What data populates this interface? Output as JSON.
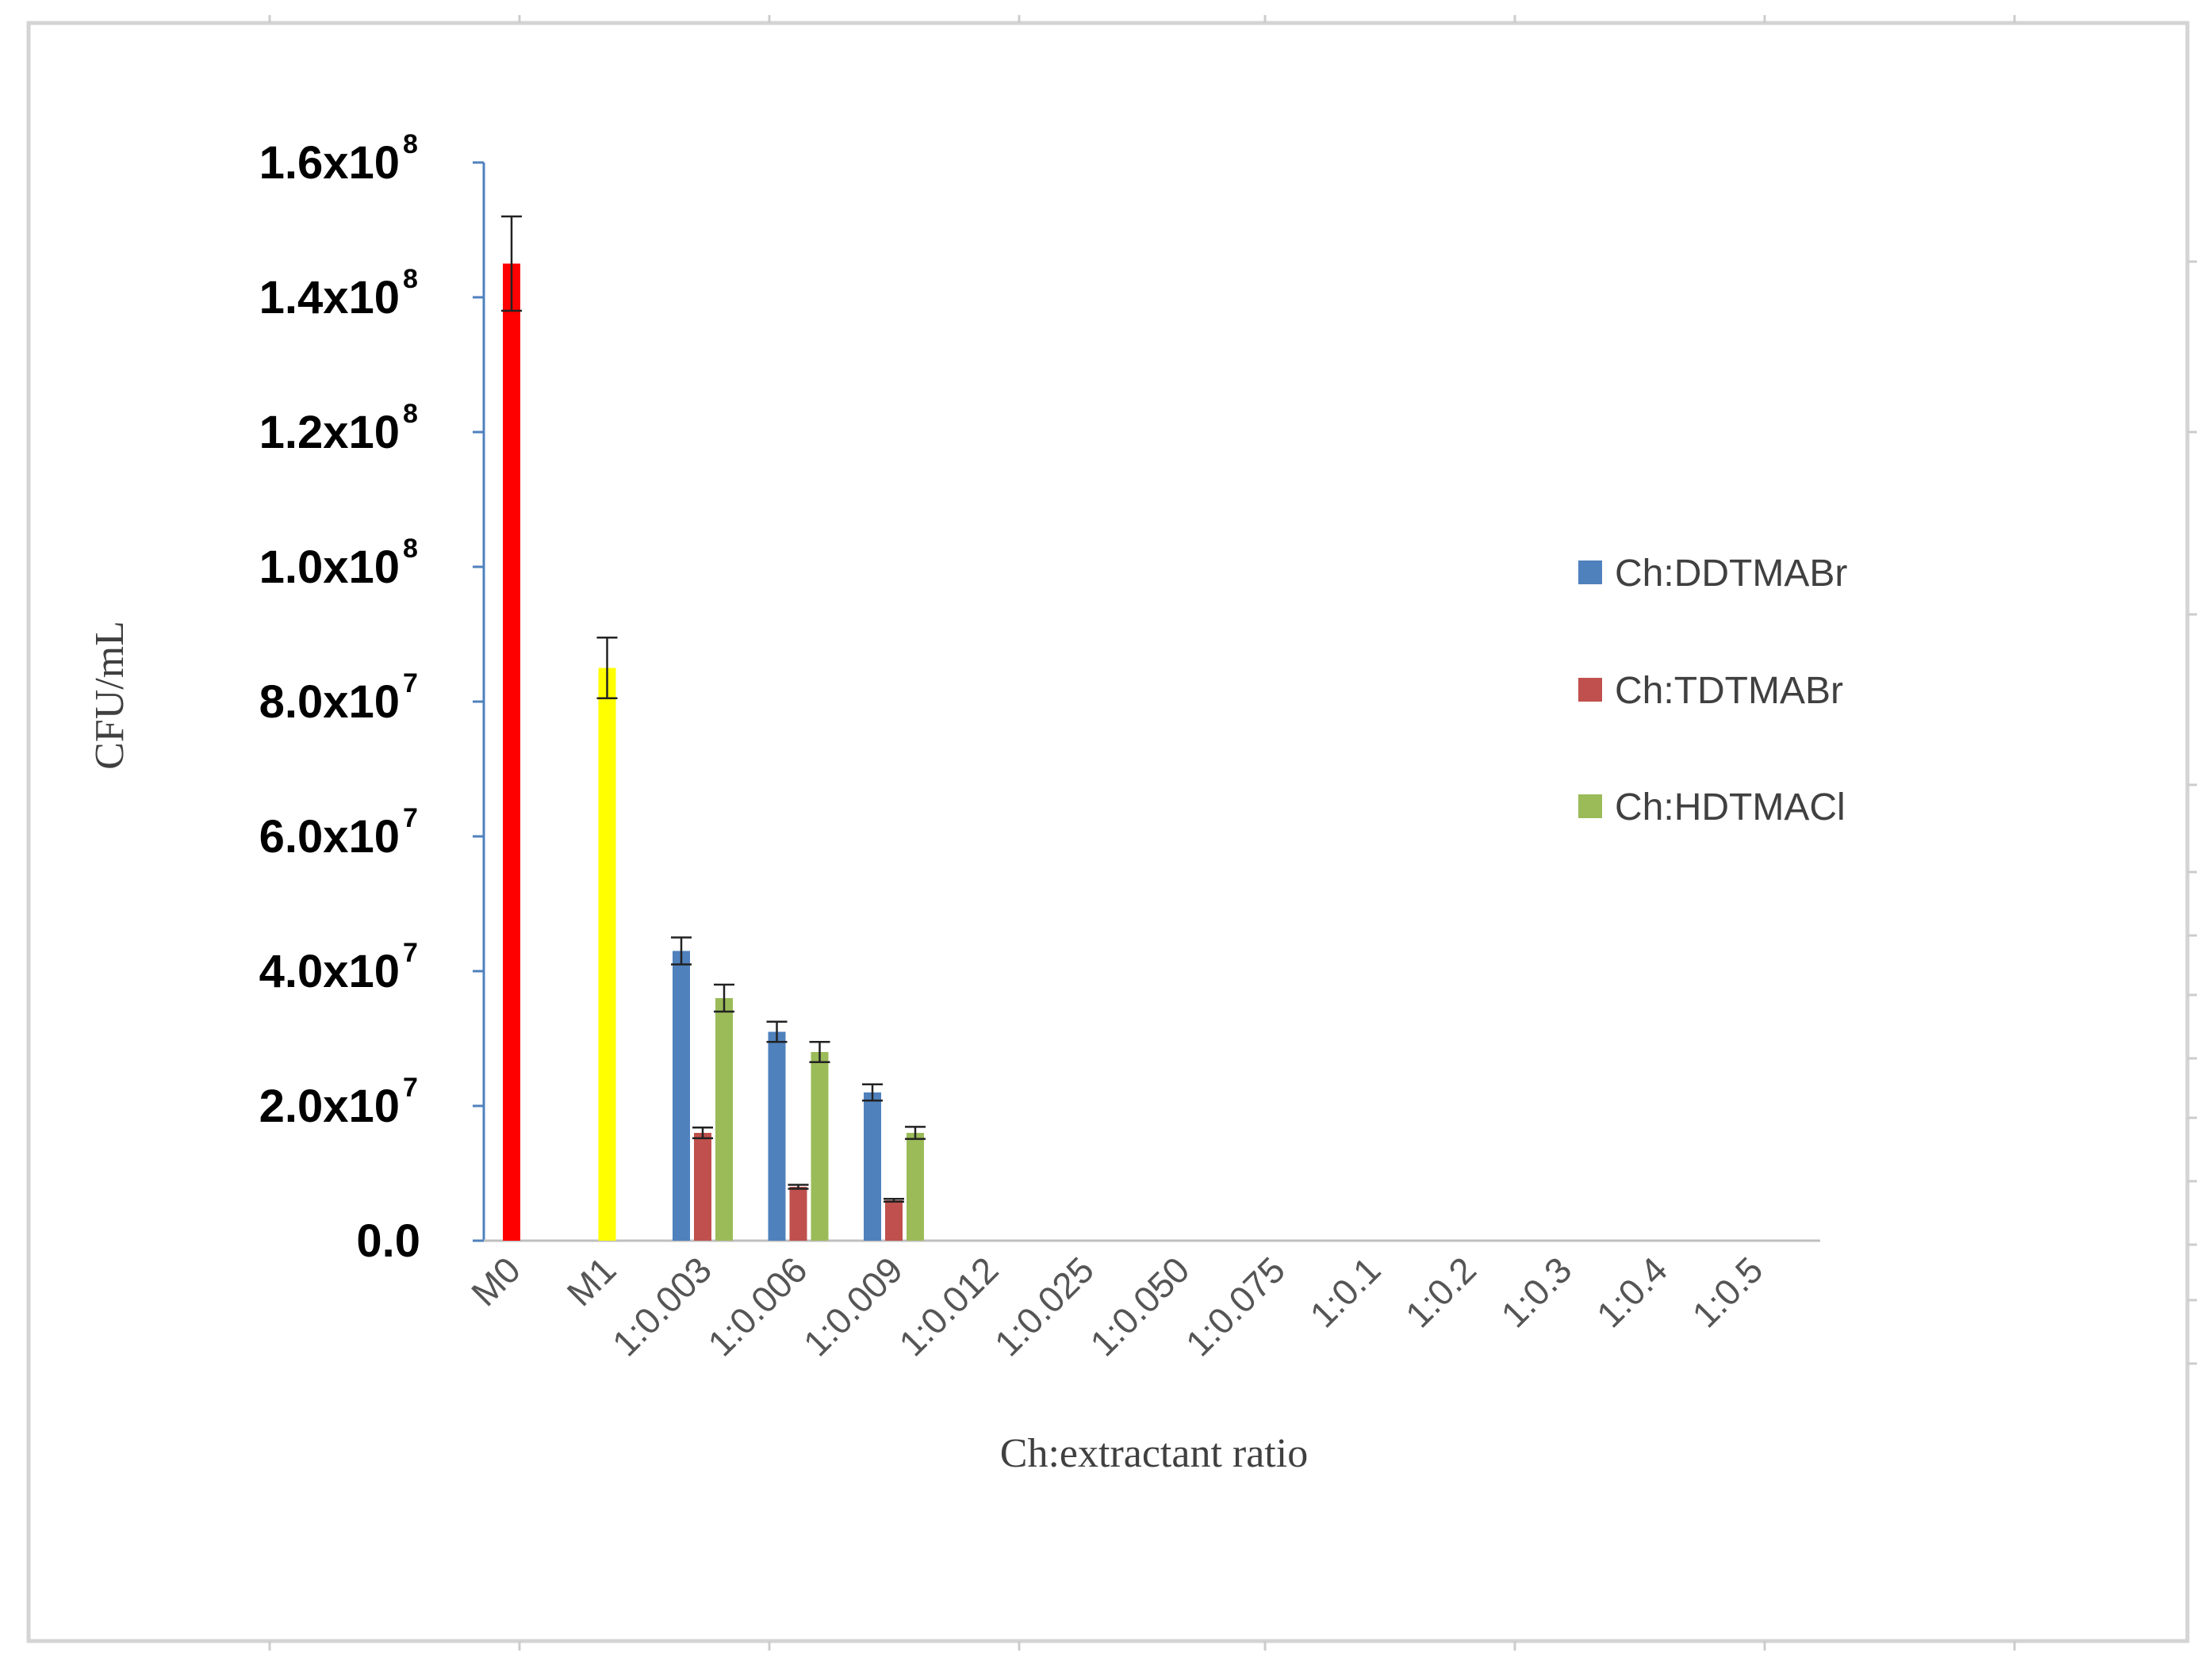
{
  "chart_data": {
    "type": "bar",
    "xlabel": "Ch:extractant ratio",
    "ylabel": "CFU/mL",
    "ylim": [
      0,
      160000000
    ],
    "yticks": [
      {
        "value": 0,
        "label": "0.0",
        "exp": ""
      },
      {
        "value": 20000000,
        "label": "2.0x10",
        "exp": "7"
      },
      {
        "value": 40000000,
        "label": "4.0x10",
        "exp": "7"
      },
      {
        "value": 60000000,
        "label": "6.0x10",
        "exp": "7"
      },
      {
        "value": 80000000,
        "label": "8.0x10",
        "exp": "7"
      },
      {
        "value": 100000000,
        "label": "1.0x10",
        "exp": "8"
      },
      {
        "value": 120000000,
        "label": "1.2x10",
        "exp": "8"
      },
      {
        "value": 140000000,
        "label": "1.4x10",
        "exp": "8"
      },
      {
        "value": 160000000,
        "label": "1.6x10",
        "exp": "8"
      }
    ],
    "categories": [
      "M0",
      "M1",
      "1:0.003",
      "1:0.006",
      "1:0.009",
      "1:0.012",
      "1:0.025",
      "1:0.050",
      "1:0.075",
      "1:0.1",
      "1:0.2",
      "1:0.3",
      "1:0.4",
      "1:0.5"
    ],
    "controls": [
      {
        "category": "M0",
        "value": 145000000,
        "error": 7000000,
        "color": "#ff0000"
      },
      {
        "category": "M1",
        "value": 85000000,
        "error": 4500000,
        "color": "#ffff00"
      }
    ],
    "series": [
      {
        "name": "Ch:DDTMABr",
        "color": "#4f81bd",
        "values": [
          null,
          null,
          43000000,
          31000000,
          22000000,
          0,
          0,
          0,
          0,
          0,
          0,
          0,
          0,
          0
        ],
        "errors": [
          null,
          null,
          2000000,
          1500000,
          1200000,
          0,
          0,
          0,
          0,
          0,
          0,
          0,
          0,
          0
        ]
      },
      {
        "name": "Ch:TDTMABr",
        "color": "#c0504d",
        "values": [
          null,
          null,
          16000000,
          8000000,
          6000000,
          0,
          0,
          0,
          0,
          0,
          0,
          0,
          0,
          0
        ],
        "errors": [
          null,
          null,
          800000,
          300000,
          200000,
          0,
          0,
          0,
          0,
          0,
          0,
          0,
          0,
          0
        ]
      },
      {
        "name": "Ch:HDTMACl",
        "color": "#9bbb59",
        "values": [
          null,
          null,
          36000000,
          28000000,
          16000000,
          0,
          0,
          0,
          0,
          0,
          0,
          0,
          0,
          0
        ],
        "errors": [
          null,
          null,
          2000000,
          1500000,
          900000,
          0,
          0,
          0,
          0,
          0,
          0,
          0,
          0,
          0
        ]
      }
    ],
    "legend_position": "right",
    "grid": false
  }
}
